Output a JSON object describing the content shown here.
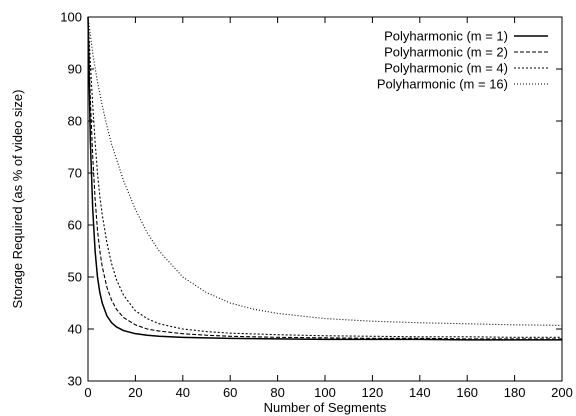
{
  "chart_data": {
    "type": "line",
    "xlabel": "Number of Segments",
    "ylabel": "Storage Required (as % of video size)",
    "xlim": [
      0,
      200
    ],
    "ylim": [
      30,
      100
    ],
    "x_ticks": [
      0,
      20,
      40,
      60,
      80,
      100,
      120,
      140,
      160,
      180,
      200
    ],
    "y_ticks": [
      30,
      40,
      50,
      60,
      70,
      80,
      90,
      100
    ],
    "grid": false,
    "legend_position": "top-right",
    "series": [
      {
        "name": "Polyharmonic (m =  1)",
        "dash": "solid",
        "x": [
          0,
          1,
          2,
          3,
          4,
          5,
          6,
          8,
          10,
          12,
          15,
          20,
          25,
          30,
          40,
          50,
          60,
          80,
          100,
          120,
          140,
          160,
          180,
          200
        ],
        "y": [
          100,
          76,
          63,
          55,
          50,
          47,
          45,
          42.5,
          41.2,
          40.4,
          39.7,
          39.1,
          38.8,
          38.6,
          38.4,
          38.3,
          38.2,
          38.1,
          38.0,
          38.0,
          38.0,
          37.9,
          37.9,
          37.9
        ]
      },
      {
        "name": "Polyharmonic (m =  2)",
        "dash": "dashed",
        "x": [
          0,
          1,
          2,
          3,
          4,
          5,
          6,
          8,
          10,
          12,
          15,
          20,
          25,
          30,
          40,
          50,
          60,
          80,
          100,
          120,
          140,
          160,
          180,
          200
        ],
        "y": [
          100,
          84,
          73,
          65,
          59,
          55,
          52,
          48,
          45.5,
          43.8,
          42.2,
          40.8,
          40.0,
          39.6,
          39.1,
          38.8,
          38.6,
          38.4,
          38.3,
          38.2,
          38.2,
          38.1,
          38.1,
          38.1
        ]
      },
      {
        "name": "Polyharmonic (m =  4)",
        "dash": "dotted",
        "x": [
          0,
          1,
          2,
          3,
          4,
          5,
          6,
          8,
          10,
          12,
          15,
          20,
          25,
          30,
          40,
          50,
          60,
          80,
          100,
          120,
          140,
          160,
          180,
          200
        ],
        "y": [
          100,
          91,
          83,
          76,
          70,
          65.5,
          62,
          56.5,
          52.5,
          49.5,
          46.5,
          43.5,
          42.0,
          41.0,
          40.0,
          39.5,
          39.2,
          38.9,
          38.7,
          38.6,
          38.5,
          38.5,
          38.4,
          38.4
        ]
      },
      {
        "name": "Polyharmonic (m = 16)",
        "dash": "fine-dotted",
        "x": [
          0,
          2,
          4,
          6,
          8,
          10,
          15,
          20,
          25,
          30,
          40,
          50,
          60,
          70,
          80,
          100,
          120,
          140,
          160,
          180,
          200
        ],
        "y": [
          100,
          93,
          87.5,
          83,
          79,
          75.5,
          68.5,
          63,
          58.5,
          55,
          50,
          47,
          45,
          43.8,
          43,
          42,
          41.5,
          41.2,
          41,
          40.8,
          40.7
        ]
      }
    ]
  }
}
